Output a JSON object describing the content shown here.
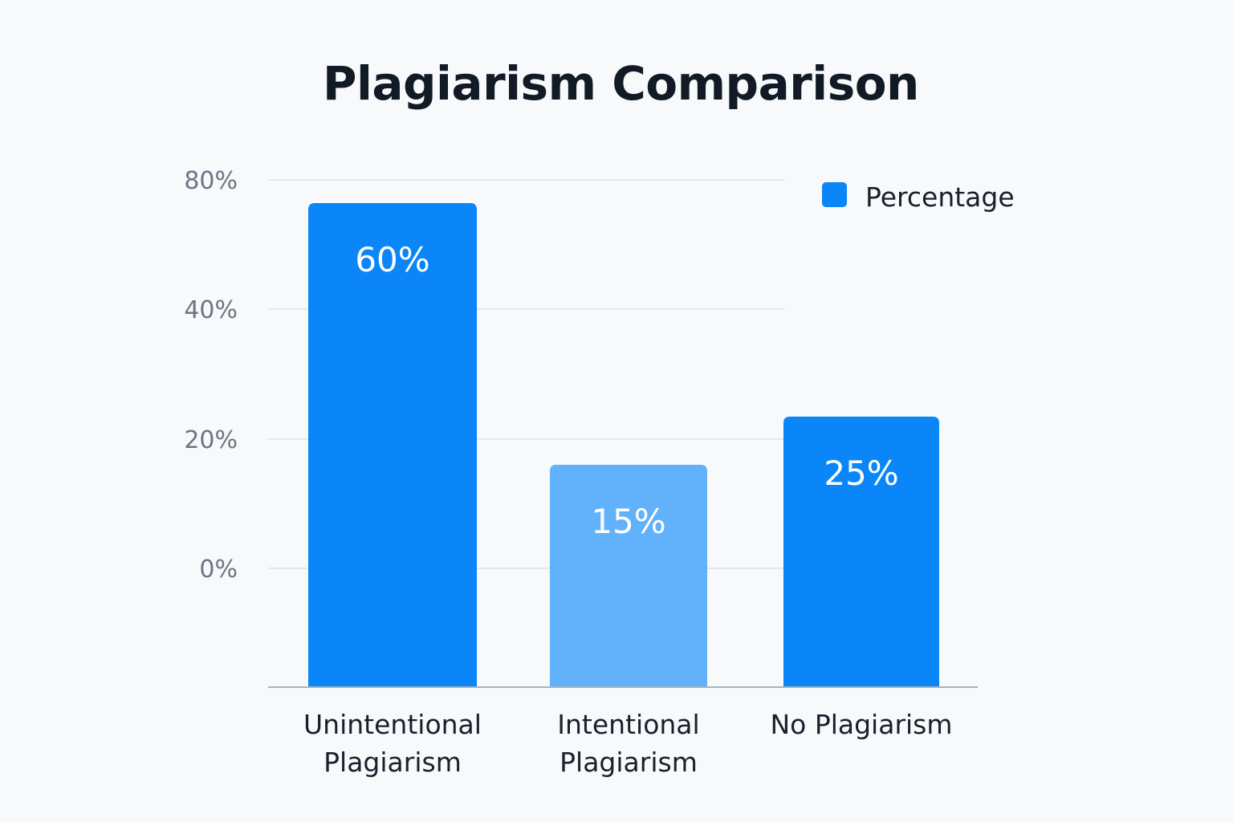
{
  "chart_data": {
    "type": "bar",
    "title": "Plagiarism Comparison",
    "categories": [
      "Unintentional Plagiarism",
      "Intentional Plagiarism",
      "No Plagiarism"
    ],
    "category_lines": [
      [
        "Unintentional",
        "Plagiarism"
      ],
      [
        "Intentional",
        "Plagiarism"
      ],
      [
        "No Plagiarism"
      ]
    ],
    "series": [
      {
        "name": "Percentage",
        "values": [
          60,
          15,
          25
        ]
      }
    ],
    "value_labels": [
      "60%",
      "15%",
      "25%"
    ],
    "y_ticks": [
      0,
      20,
      40,
      80
    ],
    "y_tick_labels": [
      "0%",
      "20%",
      "40%",
      "80%"
    ],
    "grid": true,
    "legend_position": "top-right",
    "colors": {
      "bar": [
        "#0a86f9",
        "#62b2fb",
        "#0a86f9"
      ],
      "legend": "#0a86f9",
      "grid": "#e3e7ee",
      "axis": "#aab2be"
    }
  }
}
